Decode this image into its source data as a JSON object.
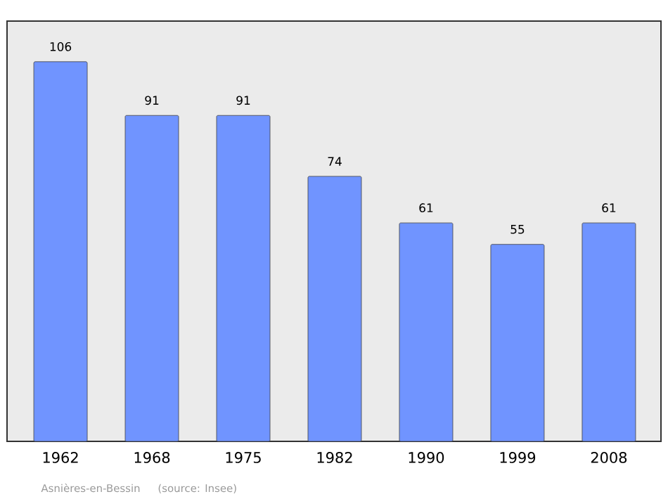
{
  "chart_data": {
    "type": "bar",
    "categories": [
      "1962",
      "1968",
      "1975",
      "1982",
      "1990",
      "1999",
      "2008"
    ],
    "values": [
      106,
      91,
      91,
      74,
      61,
      55,
      61
    ],
    "color": "#7094ff",
    "data_labels": true,
    "relative": false,
    "annotations": [
      "Asnières-en-Bessin",
      "(source: Insee)"
    ]
  }
}
